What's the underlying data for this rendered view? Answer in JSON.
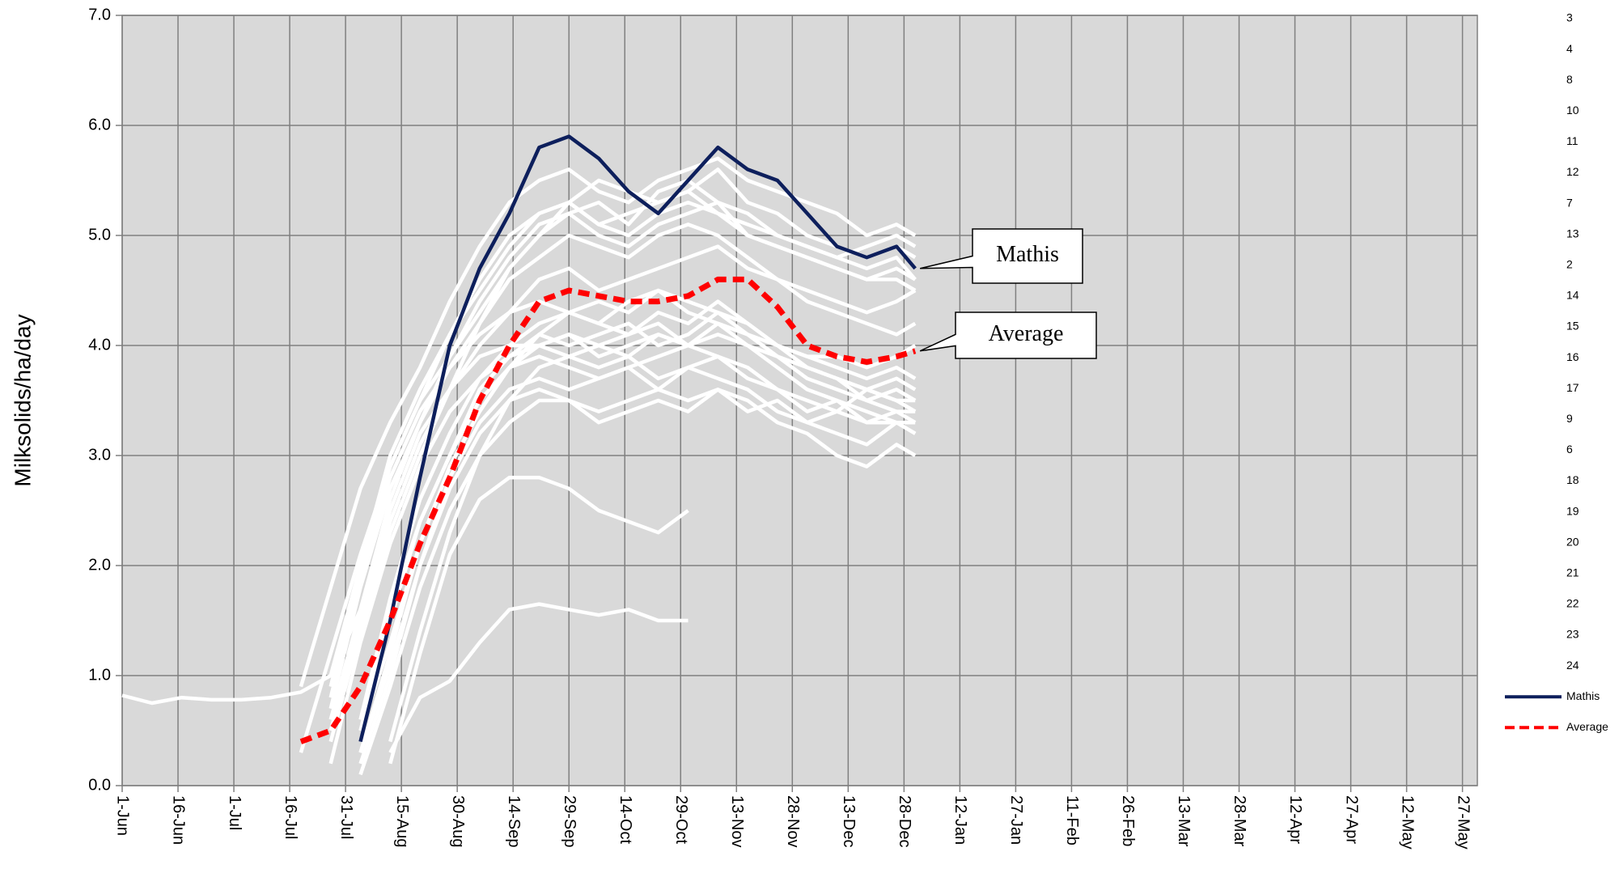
{
  "chart_data": {
    "type": "line",
    "y_label": "Milksolids/ha/day",
    "x": [
      0,
      8,
      16,
      24,
      32,
      40,
      48,
      56,
      64,
      72,
      80,
      88,
      96,
      104,
      112,
      120,
      128,
      136,
      144,
      152,
      160,
      168,
      176,
      184,
      192,
      200,
      208,
      213
    ],
    "xlim": [
      0,
      364
    ],
    "xticks": [
      {
        "value": 0,
        "label": "1-Jun"
      },
      {
        "value": 15,
        "label": "16-Jun"
      },
      {
        "value": 30,
        "label": "1-Jul"
      },
      {
        "value": 45,
        "label": "16-Jul"
      },
      {
        "value": 60,
        "label": "31-Jul"
      },
      {
        "value": 75,
        "label": "15-Aug"
      },
      {
        "value": 90,
        "label": "30-Aug"
      },
      {
        "value": 105,
        "label": "14-Sep"
      },
      {
        "value": 120,
        "label": "29-Sep"
      },
      {
        "value": 135,
        "label": "14-Oct"
      },
      {
        "value": 150,
        "label": "29-Oct"
      },
      {
        "value": 165,
        "label": "13-Nov"
      },
      {
        "value": 180,
        "label": "28-Nov"
      },
      {
        "value": 195,
        "label": "13-Dec"
      },
      {
        "value": 210,
        "label": "28-Dec"
      },
      {
        "value": 225,
        "label": "12-Jan"
      },
      {
        "value": 240,
        "label": "27-Jan"
      },
      {
        "value": 255,
        "label": "11-Feb"
      },
      {
        "value": 270,
        "label": "26-Feb"
      },
      {
        "value": 285,
        "label": "13-Mar"
      },
      {
        "value": 300,
        "label": "28-Mar"
      },
      {
        "value": 315,
        "label": "12-Apr"
      },
      {
        "value": 330,
        "label": "27-Apr"
      },
      {
        "value": 345,
        "label": "12-May"
      },
      {
        "value": 360,
        "label": "27-May"
      }
    ],
    "ylim": [
      0,
      7
    ],
    "yticks": [
      {
        "value": 0,
        "label": "0.0"
      },
      {
        "value": 1,
        "label": "1.0"
      },
      {
        "value": 2,
        "label": "2.0"
      },
      {
        "value": 3,
        "label": "3.0"
      },
      {
        "value": 4,
        "label": "4.0"
      },
      {
        "value": 5,
        "label": "5.0"
      },
      {
        "value": 6,
        "label": "6.0"
      },
      {
        "value": 7,
        "label": "7.0"
      }
    ],
    "grid": true,
    "legend": "right",
    "annotations": [
      {
        "text": "Mathis",
        "series": 22
      },
      {
        "text": "Average",
        "series": 23
      }
    ],
    "series": [
      {
        "name": "3",
        "color": "#ffffff",
        "values": [
          0.82,
          0.75,
          0.8,
          0.78,
          0.78,
          0.8,
          0.85,
          1.0,
          1.6,
          2.5,
          3.2,
          3.6,
          4.0,
          4.3,
          4.6,
          4.7,
          4.5,
          4.6,
          4.7,
          4.8,
          4.9,
          4.7,
          4.6,
          4.5,
          4.4,
          4.3,
          4.4,
          4.5
        ]
      },
      {
        "name": "4",
        "color": "#ffffff",
        "values": [
          null,
          null,
          null,
          null,
          null,
          null,
          0.9,
          1.8,
          2.7,
          3.3,
          3.8,
          4.4,
          4.9,
          5.3,
          5.5,
          5.6,
          5.4,
          5.3,
          5.5,
          5.6,
          5.7,
          5.5,
          5.4,
          5.3,
          5.2,
          5.0,
          5.1,
          5.0
        ]
      },
      {
        "name": "8",
        "color": "#ffffff",
        "values": [
          null,
          null,
          null,
          null,
          null,
          null,
          0.3,
          1.2,
          2.1,
          2.9,
          3.5,
          4.1,
          4.6,
          5.0,
          5.2,
          5.3,
          5.1,
          5.0,
          5.2,
          5.3,
          5.2,
          5.0,
          4.9,
          4.8,
          4.7,
          4.6,
          4.7,
          4.6
        ]
      },
      {
        "name": "10",
        "color": "#ffffff",
        "values": [
          null,
          null,
          null,
          null,
          null,
          null,
          null,
          0.5,
          1.5,
          2.4,
          3.1,
          3.6,
          3.9,
          4.0,
          4.0,
          4.1,
          4.0,
          4.1,
          4.2,
          4.0,
          4.1,
          4.0,
          3.8,
          3.6,
          3.5,
          3.4,
          3.3,
          3.3
        ]
      },
      {
        "name": "11",
        "color": "#ffffff",
        "values": [
          null,
          null,
          null,
          null,
          null,
          null,
          null,
          0.2,
          1.3,
          2.2,
          2.9,
          3.4,
          3.7,
          3.9,
          4.0,
          3.9,
          4.0,
          3.9,
          4.1,
          4.0,
          4.2,
          4.0,
          3.9,
          3.7,
          3.6,
          3.5,
          3.4,
          3.4
        ]
      },
      {
        "name": "12",
        "color": "#ffffff",
        "values": [
          null,
          null,
          null,
          null,
          null,
          null,
          null,
          null,
          0.5,
          1.6,
          2.4,
          3.0,
          3.5,
          3.8,
          3.9,
          3.8,
          3.7,
          3.8,
          3.9,
          4.0,
          3.9,
          3.8,
          3.6,
          3.5,
          3.4,
          3.3,
          3.3,
          3.2
        ]
      },
      {
        "name": "7",
        "color": "#ffffff",
        "values": [
          null,
          null,
          null,
          null,
          null,
          null,
          null,
          0.8,
          1.9,
          2.8,
          3.4,
          3.8,
          4.2,
          4.6,
          4.8,
          5.0,
          4.9,
          4.8,
          5.0,
          5.1,
          5.0,
          4.8,
          4.6,
          4.4,
          4.3,
          4.2,
          4.1,
          4.2
        ]
      },
      {
        "name": "13",
        "color": "#ffffff",
        "values": [
          null,
          null,
          null,
          null,
          null,
          null,
          null,
          null,
          0.3,
          1.1,
          2.0,
          2.7,
          3.2,
          3.5,
          3.6,
          3.5,
          3.4,
          3.5,
          3.6,
          3.5,
          3.6,
          3.4,
          3.5,
          3.3,
          3.2,
          3.1,
          3.3,
          3.2
        ]
      },
      {
        "name": "2",
        "color": "#ffffff",
        "values": [
          null,
          null,
          null,
          null,
          null,
          null,
          null,
          0.6,
          1.6,
          2.6,
          3.3,
          3.9,
          4.4,
          4.8,
          5.1,
          5.2,
          5.0,
          4.9,
          5.1,
          5.2,
          5.3,
          5.0,
          4.9,
          4.8,
          4.7,
          4.6,
          4.6,
          4.5
        ]
      },
      {
        "name": "14",
        "color": "#ffffff",
        "values": [
          null,
          null,
          null,
          null,
          null,
          null,
          null,
          null,
          0.4,
          1.5,
          2.4,
          3.0,
          3.6,
          3.9,
          4.1,
          4.0,
          4.1,
          4.2,
          4.0,
          4.1,
          4.3,
          4.1,
          3.9,
          3.8,
          3.7,
          3.5,
          3.6,
          3.5
        ]
      },
      {
        "name": "15",
        "color": "#ffffff",
        "values": [
          null,
          null,
          null,
          null,
          null,
          null,
          null,
          null,
          null,
          0.2,
          1.2,
          2.1,
          2.6,
          2.8,
          2.8,
          2.7,
          2.5,
          2.4,
          2.3,
          2.5,
          null,
          null,
          null,
          null,
          null,
          null,
          null,
          null
        ]
      },
      {
        "name": "16",
        "color": "#ffffff",
        "values": [
          null,
          null,
          null,
          null,
          null,
          null,
          null,
          null,
          null,
          0.3,
          0.8,
          0.95,
          1.3,
          1.6,
          1.65,
          1.6,
          1.55,
          1.6,
          1.5,
          1.5,
          null,
          null,
          null,
          null,
          null,
          null,
          null,
          null
        ]
      },
      {
        "name": "17",
        "color": "#ffffff",
        "values": [
          null,
          null,
          null,
          null,
          null,
          null,
          null,
          1.0,
          2.0,
          2.9,
          3.5,
          3.9,
          4.3,
          4.7,
          5.0,
          5.2,
          5.3,
          5.1,
          5.4,
          5.5,
          5.3,
          5.2,
          5.0,
          4.9,
          4.8,
          4.7,
          4.8,
          4.6
        ]
      },
      {
        "name": "9",
        "color": "#ffffff",
        "values": [
          null,
          null,
          null,
          null,
          null,
          null,
          null,
          null,
          0.2,
          1.0,
          2.0,
          2.8,
          3.3,
          3.6,
          3.7,
          3.6,
          3.7,
          3.8,
          3.6,
          3.8,
          3.7,
          3.6,
          3.4,
          3.3,
          3.4,
          3.6,
          3.5,
          3.4
        ]
      },
      {
        "name": "6",
        "color": "#ffffff",
        "values": [
          null,
          null,
          null,
          null,
          null,
          null,
          null,
          null,
          0.6,
          1.7,
          2.6,
          3.2,
          3.7,
          4.0,
          4.2,
          4.3,
          4.2,
          4.1,
          4.3,
          4.2,
          4.4,
          4.2,
          4.0,
          3.9,
          3.8,
          3.7,
          3.8,
          3.7
        ]
      },
      {
        "name": "18",
        "color": "#ffffff",
        "values": [
          null,
          null,
          null,
          null,
          null,
          null,
          null,
          0.7,
          1.8,
          2.7,
          3.3,
          3.8,
          4.1,
          4.3,
          4.4,
          4.3,
          4.2,
          4.4,
          4.5,
          4.3,
          4.2,
          4.1,
          3.9,
          3.8,
          3.7,
          3.6,
          3.5,
          3.5
        ]
      },
      {
        "name": "19",
        "color": "#ffffff",
        "values": [
          null,
          null,
          null,
          null,
          null,
          null,
          null,
          null,
          0.1,
          0.9,
          1.8,
          2.5,
          3.0,
          3.3,
          3.5,
          3.5,
          3.3,
          3.4,
          3.5,
          3.4,
          3.6,
          3.5,
          3.3,
          3.2,
          3.0,
          2.9,
          3.1,
          3.0
        ]
      },
      {
        "name": "20",
        "color": "#ffffff",
        "values": [
          null,
          null,
          null,
          null,
          null,
          null,
          null,
          0.4,
          1.4,
          2.3,
          3.0,
          3.6,
          4.2,
          4.7,
          5.0,
          5.3,
          5.5,
          5.4,
          5.3,
          5.4,
          5.6,
          5.3,
          5.2,
          5.0,
          4.9,
          4.8,
          4.9,
          4.8
        ]
      },
      {
        "name": "21",
        "color": "#ffffff",
        "values": [
          null,
          null,
          null,
          null,
          null,
          null,
          null,
          null,
          0.5,
          1.3,
          2.2,
          2.9,
          3.4,
          3.8,
          4.0,
          4.1,
          3.9,
          4.0,
          4.1,
          4.0,
          4.2,
          4.1,
          4.0,
          3.9,
          3.9,
          3.8,
          3.9,
          4.0
        ]
      },
      {
        "name": "22",
        "color": "#ffffff",
        "values": [
          null,
          null,
          null,
          null,
          null,
          null,
          null,
          null,
          null,
          0.4,
          1.4,
          2.3,
          3.0,
          3.5,
          3.8,
          3.9,
          3.8,
          3.9,
          3.7,
          3.8,
          3.9,
          3.7,
          3.6,
          3.4,
          3.5,
          3.3,
          3.4,
          3.3
        ]
      },
      {
        "name": "23",
        "color": "#ffffff",
        "values": [
          null,
          null,
          null,
          null,
          null,
          null,
          null,
          0.9,
          2.0,
          3.0,
          3.6,
          4.1,
          4.5,
          4.9,
          5.2,
          5.3,
          5.1,
          5.2,
          5.3,
          5.4,
          5.2,
          5.1,
          5.0,
          4.9,
          4.8,
          4.9,
          5.0,
          4.9
        ]
      },
      {
        "name": "24",
        "color": "#ffffff",
        "values": [
          null,
          null,
          null,
          null,
          null,
          null,
          null,
          null,
          0.3,
          1.2,
          2.2,
          2.9,
          3.4,
          3.8,
          4.1,
          4.3,
          4.4,
          4.3,
          4.5,
          4.4,
          4.3,
          4.2,
          4.0,
          3.8,
          3.7,
          3.6,
          3.7,
          3.6
        ]
      },
      {
        "name": "Mathis",
        "color": "#0d1f5c",
        "values": [
          null,
          null,
          null,
          null,
          null,
          null,
          null,
          null,
          0.4,
          1.5,
          2.8,
          4.0,
          4.7,
          5.2,
          5.8,
          5.9,
          5.7,
          5.4,
          5.2,
          5.5,
          5.8,
          5.6,
          5.5,
          5.2,
          4.9,
          4.8,
          4.9,
          4.7
        ]
      },
      {
        "name": "Average",
        "color": "#ff0000",
        "dashed": true,
        "values": [
          null,
          null,
          null,
          null,
          null,
          null,
          0.4,
          0.5,
          0.9,
          1.5,
          2.2,
          2.8,
          3.5,
          4.0,
          4.4,
          4.5,
          4.45,
          4.4,
          4.4,
          4.45,
          4.6,
          4.6,
          4.35,
          4.0,
          3.9,
          3.85,
          3.9,
          3.95
        ]
      }
    ]
  }
}
